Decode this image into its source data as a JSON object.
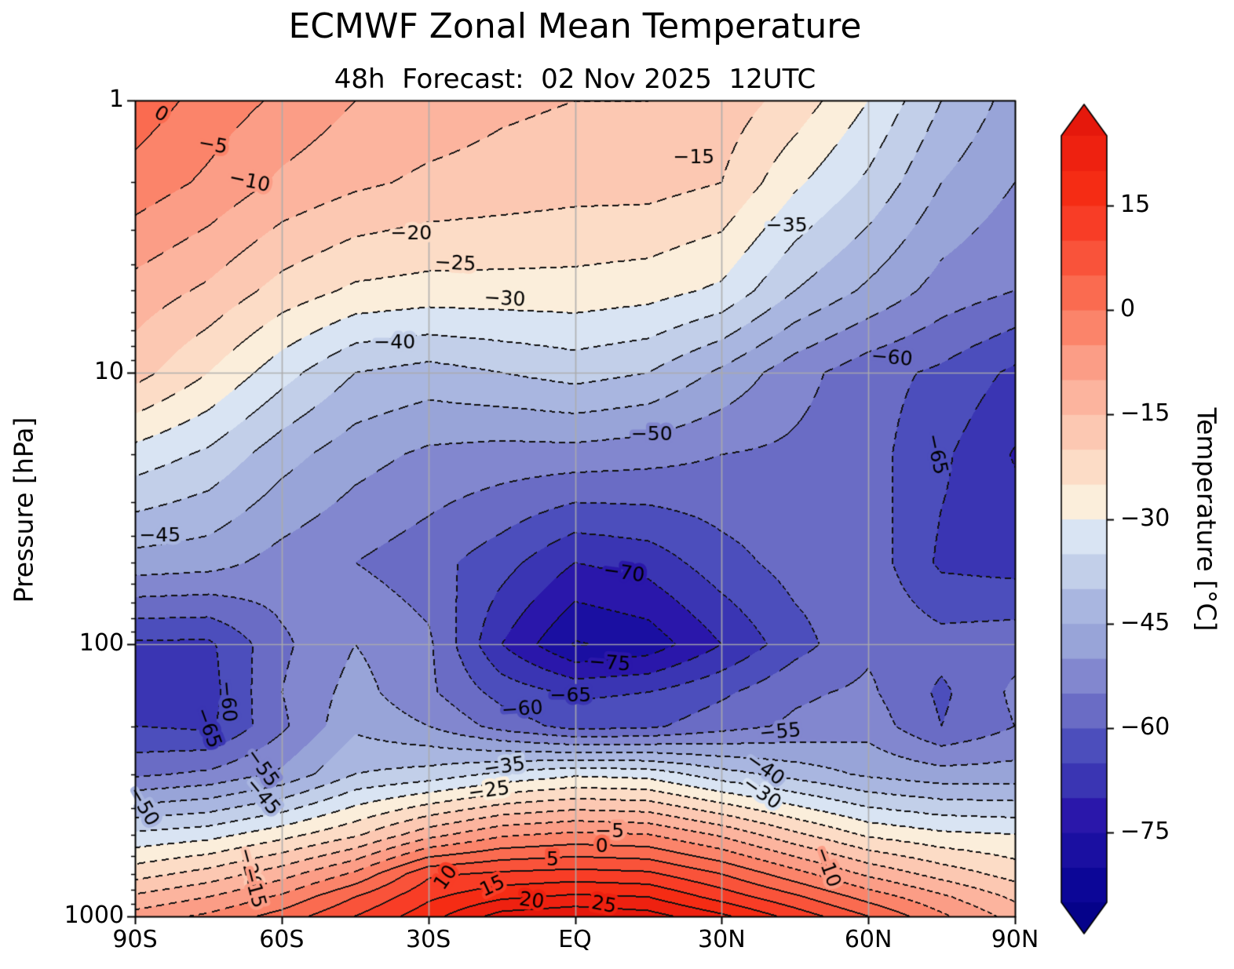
{
  "title": "ECMWF Zonal Mean Temperature",
  "subtitle": "48h  Forecast:  02 Nov 2025  12UTC",
  "chart_data": {
    "type": "filled_contour",
    "title": "ECMWF Zonal Mean Temperature",
    "subtitle": "48h  Forecast:  02 Nov 2025  12UTC",
    "xlabel": "",
    "ylabel": "Pressure [hPa]",
    "y_scale": "log",
    "x_range_deg_lat": [
      -90,
      90
    ],
    "y_range_hpa": [
      1,
      1000
    ],
    "x_ticks": [
      {
        "value": -90,
        "label": "90S"
      },
      {
        "value": -60,
        "label": "60S"
      },
      {
        "value": -30,
        "label": "30S"
      },
      {
        "value": 0,
        "label": "EQ"
      },
      {
        "value": 30,
        "label": "30N"
      },
      {
        "value": 60,
        "label": "60N"
      },
      {
        "value": 90,
        "label": "90N"
      }
    ],
    "y_ticks": [
      {
        "value": 1,
        "label": "1"
      },
      {
        "value": 10,
        "label": "10"
      },
      {
        "value": 100,
        "label": "100"
      },
      {
        "value": 1000,
        "label": "1000"
      }
    ],
    "grid": {
      "x_lats": [
        -60,
        -30,
        0,
        30,
        60
      ],
      "y_pressures": [
        10,
        100
      ],
      "color": "#ababab"
    },
    "levels": {
      "min": -85,
      "max": 25,
      "step": 5
    },
    "contour_style": {
      "negative": "dashed",
      "zero_and_positive": "solid",
      "line_color": "#111111"
    },
    "under_color": "#05028a",
    "over_color": "#e5180c",
    "band_colors": [
      "#0c0697",
      "#1a0fa1",
      "#2a17aa",
      "#3a35b3",
      "#4c4ebc",
      "#6a6cc5",
      "#8287cf",
      "#98a4d8",
      "#a9b6e0",
      "#c2cfe9",
      "#d9e4f3",
      "#fbeedb",
      "#fcdcc6",
      "#fcc8b2",
      "#fcb49e",
      "#fb9d86",
      "#fb846a",
      "#fa6b50",
      "#f9533a",
      "#f83d26",
      "#f52c14",
      "#ee2110"
    ],
    "colorbar": {
      "label": "Temperature [°C]",
      "position": "right",
      "extend": "both",
      "ticks": [
        {
          "value": 15,
          "label": "15"
        },
        {
          "value": 0,
          "label": "0"
        },
        {
          "value": -15,
          "label": "−15"
        },
        {
          "value": -30,
          "label": "−30"
        },
        {
          "value": -45,
          "label": "−45"
        },
        {
          "value": -60,
          "label": "−60"
        },
        {
          "value": -75,
          "label": "−75"
        }
      ]
    },
    "field": {
      "lats": [
        -90,
        -75,
        -60,
        -45,
        -30,
        -15,
        0,
        15,
        30,
        45,
        60,
        75,
        90
      ],
      "pressures": [
        1,
        2,
        5,
        10,
        20,
        50,
        100,
        150,
        200,
        300,
        500,
        700,
        850,
        1000
      ],
      "temps_c": [
        [
          3,
          -2,
          -6,
          -10,
          -12,
          -14,
          -15,
          -15,
          -17,
          -22,
          -30,
          -40,
          -47
        ],
        [
          -2,
          -6,
          -11,
          -14,
          -16,
          -17,
          -18,
          -18,
          -20,
          -29,
          -36,
          -45,
          -50
        ],
        [
          -12,
          -16,
          -22,
          -26,
          -27,
          -27,
          -27,
          -28,
          -31,
          -40,
          -46,
          -52,
          -55
        ],
        [
          -18,
          -25,
          -33,
          -40,
          -42,
          -40,
          -38,
          -40,
          -46,
          -53,
          -58,
          -61,
          -66
        ],
        [
          -32,
          -36,
          -43,
          -48,
          -51,
          -52,
          -52,
          -53,
          -55,
          -56,
          -58,
          -64,
          -70.4
        ],
        [
          -47,
          -48,
          -52,
          -55,
          -58,
          -63,
          -70,
          -68,
          -62,
          -58,
          -57,
          -66,
          -67
        ],
        [
          -66,
          -66,
          -56,
          -50,
          -54,
          -70,
          -80.5,
          -78,
          -70,
          -62,
          -56,
          -58,
          -57
        ],
        [
          -66,
          -67,
          -55,
          -48,
          -54,
          -62,
          -66,
          -65,
          -61,
          -56,
          -54,
          -61,
          -54
        ],
        [
          -65,
          -66,
          -56,
          -46,
          -50,
          -57,
          -62,
          -61,
          -57,
          -54,
          -52,
          -60,
          -55
        ],
        [
          -56,
          -54,
          -49,
          -40,
          -38,
          -34,
          -31,
          -32,
          -38,
          -42,
          -46,
          -48,
          -48
        ],
        [
          -34,
          -32,
          -27,
          -21,
          -12,
          -6,
          -4,
          -5,
          -11,
          -19,
          -26,
          -29,
          -30
        ],
        [
          -22,
          -18,
          -12,
          -4,
          9,
          11,
          12,
          11,
          5,
          -3,
          -11,
          -17,
          -22
        ],
        [
          -14,
          -10,
          -4,
          5,
          14,
          19,
          21,
          20,
          13,
          6,
          -2,
          -9,
          -16
        ],
        [
          -8,
          -4,
          2,
          10,
          18,
          27,
          29,
          27,
          21,
          13,
          5,
          -4,
          -12
        ]
      ]
    },
    "contour_labels": [
      {
        "lat": -84.7,
        "p": 1.13,
        "text": "0",
        "rot": 30
      },
      {
        "lat": -74.1,
        "p": 1.47,
        "text": "−5",
        "rot": 10
      },
      {
        "lat": -66.6,
        "p": 2.0,
        "text": "−10",
        "rot": 12
      },
      {
        "lat": 24.3,
        "p": 1.63,
        "text": "−15",
        "rot": 0
      },
      {
        "lat": -33.5,
        "p": 3.1,
        "text": "−20",
        "rot": 0
      },
      {
        "lat": -24.5,
        "p": 4.0,
        "text": "−25",
        "rot": 3
      },
      {
        "lat": -14.4,
        "p": 5.4,
        "text": "−30",
        "rot": 3
      },
      {
        "lat": 43.3,
        "p": 2.9,
        "text": "−35",
        "rot": 0
      },
      {
        "lat": -36.9,
        "p": 7.8,
        "text": "−40",
        "rot": 0
      },
      {
        "lat": 64.8,
        "p": 8.9,
        "text": "−60",
        "rot": 5
      },
      {
        "lat": 73.8,
        "p": 20,
        "text": "−65",
        "rot": 78
      },
      {
        "lat": 15.7,
        "p": 17,
        "text": "−50",
        "rot": 0
      },
      {
        "lat": -84.9,
        "p": 40,
        "text": "−45",
        "rot": 0
      },
      {
        "lat": 10,
        "p": 55,
        "text": "−70",
        "rot": 8
      },
      {
        "lat": 7.1,
        "p": 118,
        "text": "−75",
        "rot": 4
      },
      {
        "lat": -0.9,
        "p": 155,
        "text": "−65",
        "rot": 0
      },
      {
        "lat": -10.8,
        "p": 174,
        "text": "−60",
        "rot": -4
      },
      {
        "lat": 42,
        "p": 211,
        "text": "−55",
        "rot": -5
      },
      {
        "lat": -71.2,
        "p": 162,
        "text": "−60",
        "rot": 85
      },
      {
        "lat": -75.2,
        "p": 203,
        "text": "−65",
        "rot": 70
      },
      {
        "lat": -64.1,
        "p": 285,
        "text": "−55",
        "rot": 55
      },
      {
        "lat": -64,
        "p": 364,
        "text": "−45",
        "rot": 50
      },
      {
        "lat": -14.4,
        "p": 283,
        "text": "−35",
        "rot": -8
      },
      {
        "lat": 38.8,
        "p": 289,
        "text": "−40",
        "rot": 35
      },
      {
        "lat": -17.6,
        "p": 347,
        "text": "−25",
        "rot": -8
      },
      {
        "lat": 38.1,
        "p": 354,
        "text": "−30",
        "rot": 35
      },
      {
        "lat": -88.4,
        "p": 395,
        "text": "−50",
        "rot": 60
      },
      {
        "lat": -66.7,
        "p": 665,
        "text": "−20",
        "rot": 75
      },
      {
        "lat": -65.8,
        "p": 785,
        "text": "−15",
        "rot": 75
      },
      {
        "lat": 7.1,
        "p": 491,
        "text": "−5",
        "rot": 0
      },
      {
        "lat": 5.5,
        "p": 556,
        "text": "0",
        "rot": 0
      },
      {
        "lat": -4.6,
        "p": 621,
        "text": "5",
        "rot": 0
      },
      {
        "lat": -26.3,
        "p": 722,
        "text": "10",
        "rot": -55
      },
      {
        "lat": -16.8,
        "p": 779,
        "text": "15",
        "rot": -25
      },
      {
        "lat": -8.9,
        "p": 881,
        "text": "20",
        "rot": 8
      },
      {
        "lat": 5.9,
        "p": 912,
        "text": "25",
        "rot": 10
      },
      {
        "lat": 51.5,
        "p": 660,
        "text": "−10",
        "rot": 70
      }
    ]
  }
}
